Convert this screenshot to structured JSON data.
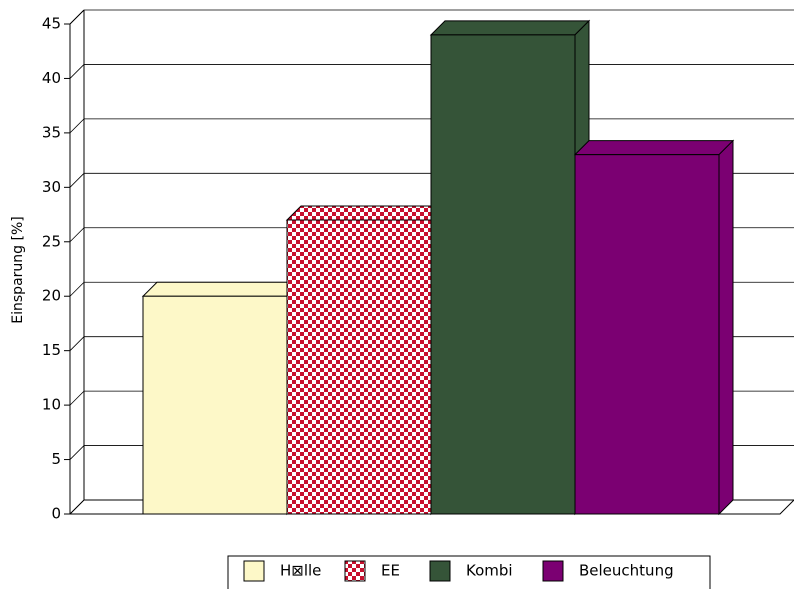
{
  "chart_data": {
    "type": "bar3d",
    "y_label": "Einsparung [%]",
    "categories": [
      null
    ],
    "series": [
      {
        "name": "H⊠lle",
        "color": "#fdf8c8",
        "values": [
          20
        ]
      },
      {
        "name": "EE",
        "color": "#c8102e",
        "pattern": "checker",
        "values": [
          27
        ]
      },
      {
        "name": "Kombi",
        "color": "#355438",
        "values": [
          44
        ]
      },
      {
        "name": "Beleuchtung",
        "color": "#7b0072",
        "values": [
          33
        ]
      }
    ],
    "ylim": [
      0,
      45
    ],
    "yticks": [
      0,
      5,
      10,
      15,
      20,
      25,
      30,
      35,
      40,
      45
    ],
    "grid": true,
    "legend": "bottom"
  }
}
